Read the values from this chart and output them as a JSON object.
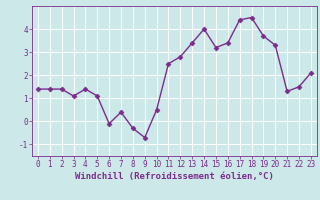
{
  "x": [
    0,
    1,
    2,
    3,
    4,
    5,
    6,
    7,
    8,
    9,
    10,
    11,
    12,
    13,
    14,
    15,
    16,
    17,
    18,
    19,
    20,
    21,
    22,
    23
  ],
  "y": [
    1.4,
    1.4,
    1.4,
    1.1,
    1.4,
    1.1,
    -0.1,
    0.4,
    -0.3,
    -0.7,
    0.5,
    2.5,
    2.8,
    3.4,
    4.0,
    3.2,
    3.4,
    4.4,
    4.5,
    3.7,
    3.3,
    1.3,
    1.5,
    2.1
  ],
  "line_color": "#7b2d8b",
  "marker": "D",
  "marker_size": 2.5,
  "line_width": 1.0,
  "background_color": "#cce8e8",
  "grid_color": "#b8d8d8",
  "xlabel": "Windchill (Refroidissement éolien,°C)",
  "xlabel_color": "#7b2d8b",
  "xlabel_fontsize": 6.5,
  "tick_color": "#7b2d8b",
  "tick_fontsize": 5.5,
  "ylim": [
    -1.5,
    5.0
  ],
  "xlim": [
    -0.5,
    23.5
  ],
  "yticks": [
    -1,
    0,
    1,
    2,
    3,
    4
  ],
  "xticks": [
    0,
    1,
    2,
    3,
    4,
    5,
    6,
    7,
    8,
    9,
    10,
    11,
    12,
    13,
    14,
    15,
    16,
    17,
    18,
    19,
    20,
    21,
    22,
    23
  ]
}
